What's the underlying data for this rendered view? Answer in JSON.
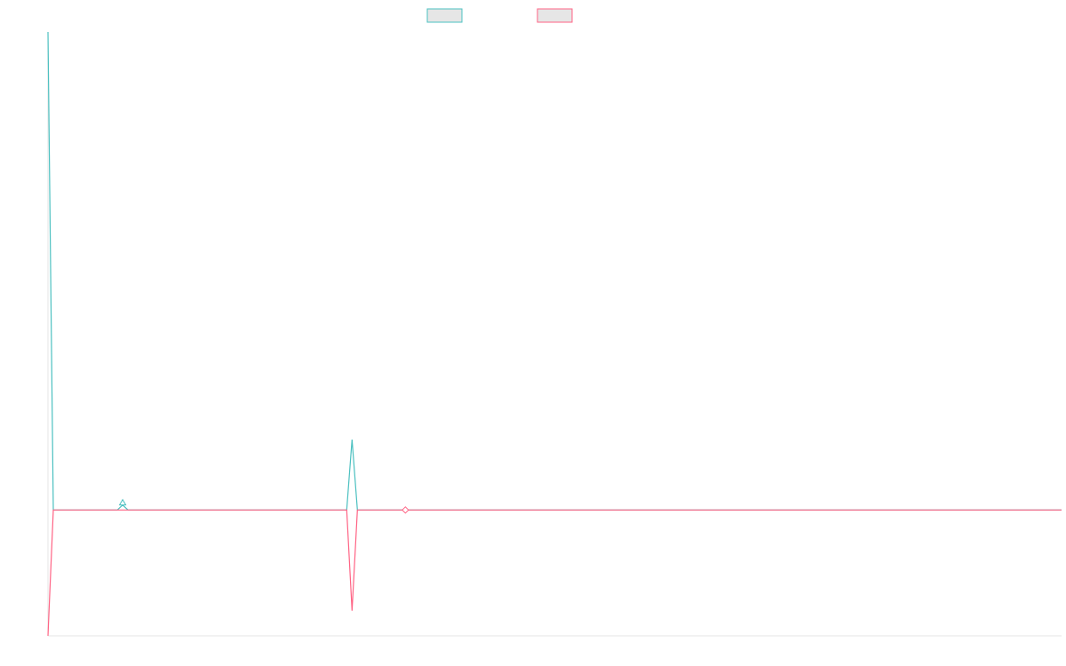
{
  "chart_data": {
    "type": "line",
    "title": "",
    "xlabel": "",
    "ylabel": "",
    "grid": false,
    "legend": "top-center",
    "x": [
      0,
      1,
      2,
      3,
      4,
      5,
      6,
      7,
      8,
      9,
      10,
      11,
      12,
      13,
      14,
      15,
      16,
      17,
      18,
      19,
      20,
      21,
      22,
      23,
      24,
      25,
      26,
      27,
      28,
      29,
      30,
      31,
      32,
      33,
      34,
      35,
      36,
      37,
      38,
      39,
      40,
      41,
      42,
      43,
      44,
      45,
      46,
      47,
      48,
      49,
      50,
      51,
      52,
      53,
      54,
      55,
      56,
      57,
      58,
      59,
      60,
      61,
      62,
      63,
      64,
      65,
      66,
      67,
      68,
      69,
      70,
      71,
      72,
      73,
      74,
      75,
      76,
      77,
      78,
      79,
      80,
      81,
      82,
      83,
      84,
      85,
      86,
      87,
      88,
      89,
      90,
      91,
      92,
      93,
      94,
      95,
      96,
      97,
      98,
      99,
      100,
      101,
      102,
      103,
      104,
      105,
      106,
      107,
      108,
      109,
      110,
      111,
      112,
      113,
      114,
      115,
      116,
      117,
      118,
      119,
      120,
      121,
      122,
      123,
      124,
      125,
      126,
      127,
      128,
      129,
      130,
      131,
      132,
      133,
      134,
      135,
      136,
      137,
      138,
      139,
      140,
      141,
      142,
      143,
      144,
      145,
      146,
      147,
      148,
      149,
      150,
      151,
      152,
      153,
      154,
      155,
      156,
      157,
      158,
      159,
      160,
      161,
      162,
      163,
      164,
      165,
      166,
      167,
      168,
      169,
      170,
      171,
      172,
      173,
      174,
      175,
      176,
      177,
      178,
      179,
      180,
      181,
      182,
      183,
      184,
      185,
      186,
      187,
      188,
      189,
      190
    ],
    "ylim": [
      -100,
      380
    ],
    "series": [
      {
        "color": "#4bc0c0",
        "values": [
          380,
          0,
          0,
          0,
          0,
          0,
          0,
          0,
          0,
          0,
          0,
          0,
          0,
          0,
          4,
          0,
          0,
          0,
          0,
          0,
          0,
          0,
          0,
          0,
          0,
          0,
          0,
          0,
          0,
          0,
          0,
          0,
          0,
          0,
          0,
          0,
          0,
          0,
          0,
          0,
          0,
          0,
          0,
          0,
          0,
          0,
          0,
          0,
          0,
          0,
          0,
          0,
          0,
          0,
          0,
          0,
          0,
          56,
          0,
          0,
          0,
          0,
          0,
          0,
          0,
          0,
          0,
          0,
          0,
          0,
          0,
          0,
          0,
          0,
          0,
          0,
          0,
          0,
          0,
          0,
          0,
          0,
          0,
          0,
          0,
          0,
          0,
          0,
          0,
          0,
          0,
          0,
          0,
          0,
          0,
          0,
          0,
          0,
          0,
          0,
          0,
          0,
          0,
          0,
          0,
          0,
          0,
          0,
          0,
          0,
          0,
          0,
          0,
          0,
          0,
          0,
          0,
          0,
          0,
          0,
          0,
          0,
          0,
          0,
          0,
          0,
          0,
          0,
          0,
          0,
          0,
          0,
          0,
          0,
          0,
          0,
          0,
          0,
          0,
          0,
          0,
          0,
          0,
          0,
          0,
          0,
          0,
          0,
          0,
          0,
          0,
          0,
          0,
          0,
          0,
          0,
          0,
          0,
          0,
          0,
          0,
          0,
          0,
          0,
          0,
          0,
          0,
          0,
          0,
          0,
          0,
          0,
          0,
          0,
          0,
          0,
          0,
          0,
          0,
          0,
          0,
          0,
          0,
          0,
          0,
          0,
          0,
          0,
          0,
          0,
          0
        ]
      },
      {
        "color": "#ff6384",
        "values": [
          -100,
          0,
          0,
          0,
          0,
          0,
          0,
          0,
          0,
          0,
          0,
          0,
          0,
          0,
          0,
          0,
          0,
          0,
          0,
          0,
          0,
          0,
          0,
          0,
          0,
          0,
          0,
          0,
          0,
          0,
          0,
          0,
          0,
          0,
          0,
          0,
          0,
          0,
          0,
          0,
          0,
          0,
          0,
          0,
          0,
          0,
          0,
          0,
          0,
          0,
          0,
          0,
          0,
          0,
          0,
          0,
          0,
          -80,
          0,
          0,
          0,
          0,
          0,
          0,
          0,
          0,
          0,
          0,
          0,
          0,
          0,
          0,
          0,
          0,
          0,
          0,
          0,
          0,
          0,
          0,
          0,
          0,
          0,
          0,
          0,
          0,
          0,
          0,
          0,
          0,
          0,
          0,
          0,
          0,
          0,
          0,
          0,
          0,
          0,
          0,
          0,
          0,
          0,
          0,
          0,
          0,
          0,
          0,
          0,
          0,
          0,
          0,
          0,
          0,
          0,
          0,
          0,
          0,
          0,
          0,
          0,
          0,
          0,
          0,
          0,
          0,
          0,
          0,
          0,
          0,
          0,
          0,
          0,
          0,
          0,
          0,
          0,
          0,
          0,
          0,
          0,
          0,
          0,
          0,
          0,
          0,
          0,
          0,
          0,
          0,
          0,
          0,
          0,
          0,
          0,
          0,
          0,
          0,
          0,
          0,
          0,
          0,
          0,
          0,
          0,
          0,
          0,
          0,
          0,
          0,
          0,
          0,
          0,
          0,
          0,
          0,
          0,
          0,
          0,
          0,
          0,
          0,
          0,
          0,
          0,
          0,
          0,
          0,
          0,
          0,
          0
        ]
      }
    ],
    "markers": [
      {
        "series": 0,
        "x": 14,
        "y": 4,
        "shape": "triangle"
      },
      {
        "series": 1,
        "x": 67,
        "y": 0,
        "shape": "diamond"
      }
    ]
  }
}
